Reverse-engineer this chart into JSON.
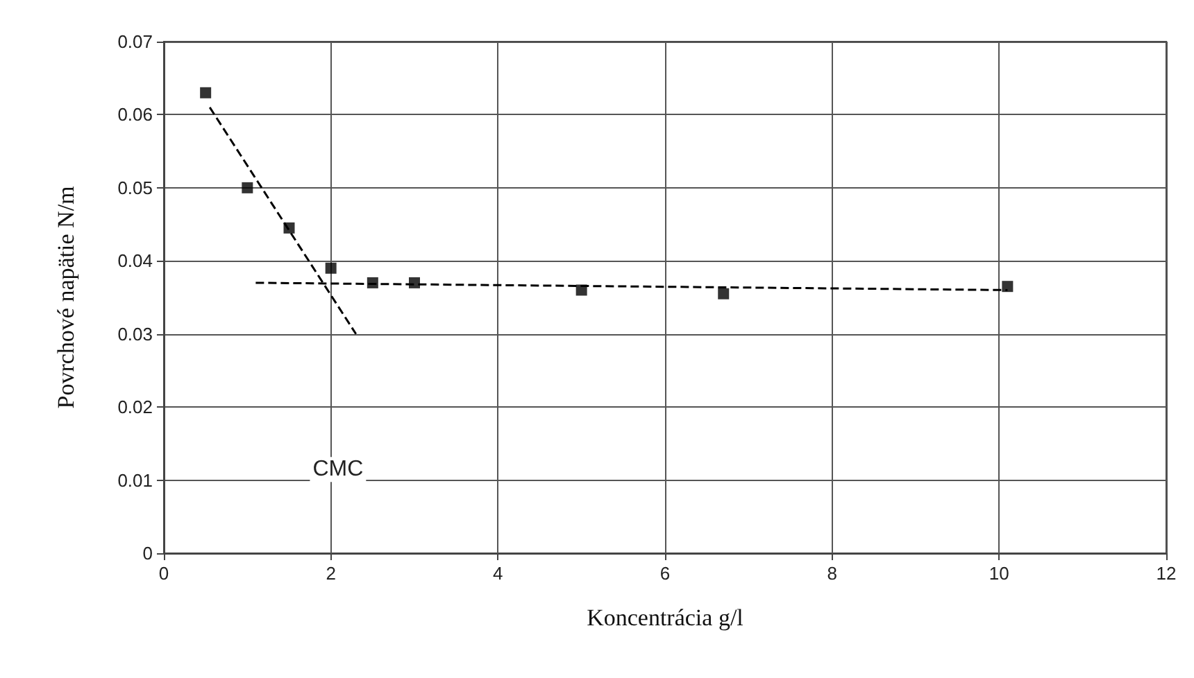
{
  "chart_data": {
    "type": "scatter",
    "xlabel": "Koncentrácia g/l",
    "ylabel": "Povrchové napätie N/m",
    "xlim": [
      0,
      12
    ],
    "xticks": [
      0,
      2,
      4,
      6,
      8,
      10,
      12
    ],
    "ylim": [
      0,
      0.07
    ],
    "yticks": [
      0,
      0.01,
      0.02,
      0.03,
      0.04,
      0.05,
      0.06,
      0.07
    ],
    "grid": true,
    "marker": "square",
    "series": [
      {
        "type": "scatter",
        "color": "#000000",
        "x": [
          0.5,
          1,
          1.5,
          2,
          2.5,
          3,
          5,
          6.7,
          10.1
        ],
        "values": [
          0.063,
          0.05,
          0.0445,
          0.039,
          0.037,
          0.037,
          0.036,
          0.0355,
          0.0365
        ]
      },
      {
        "type": "line",
        "color": "#000000",
        "line_style": "dashed",
        "marker": "none",
        "x": [
          0.55,
          2.3
        ],
        "values": [
          0.061,
          0.03
        ]
      },
      {
        "type": "line",
        "color": "#000000",
        "line_style": "dashed",
        "marker": "none",
        "x": [
          1.1,
          10.1
        ],
        "values": [
          0.037,
          0.036
        ]
      }
    ],
    "annotations": [
      "CMC"
    ]
  }
}
